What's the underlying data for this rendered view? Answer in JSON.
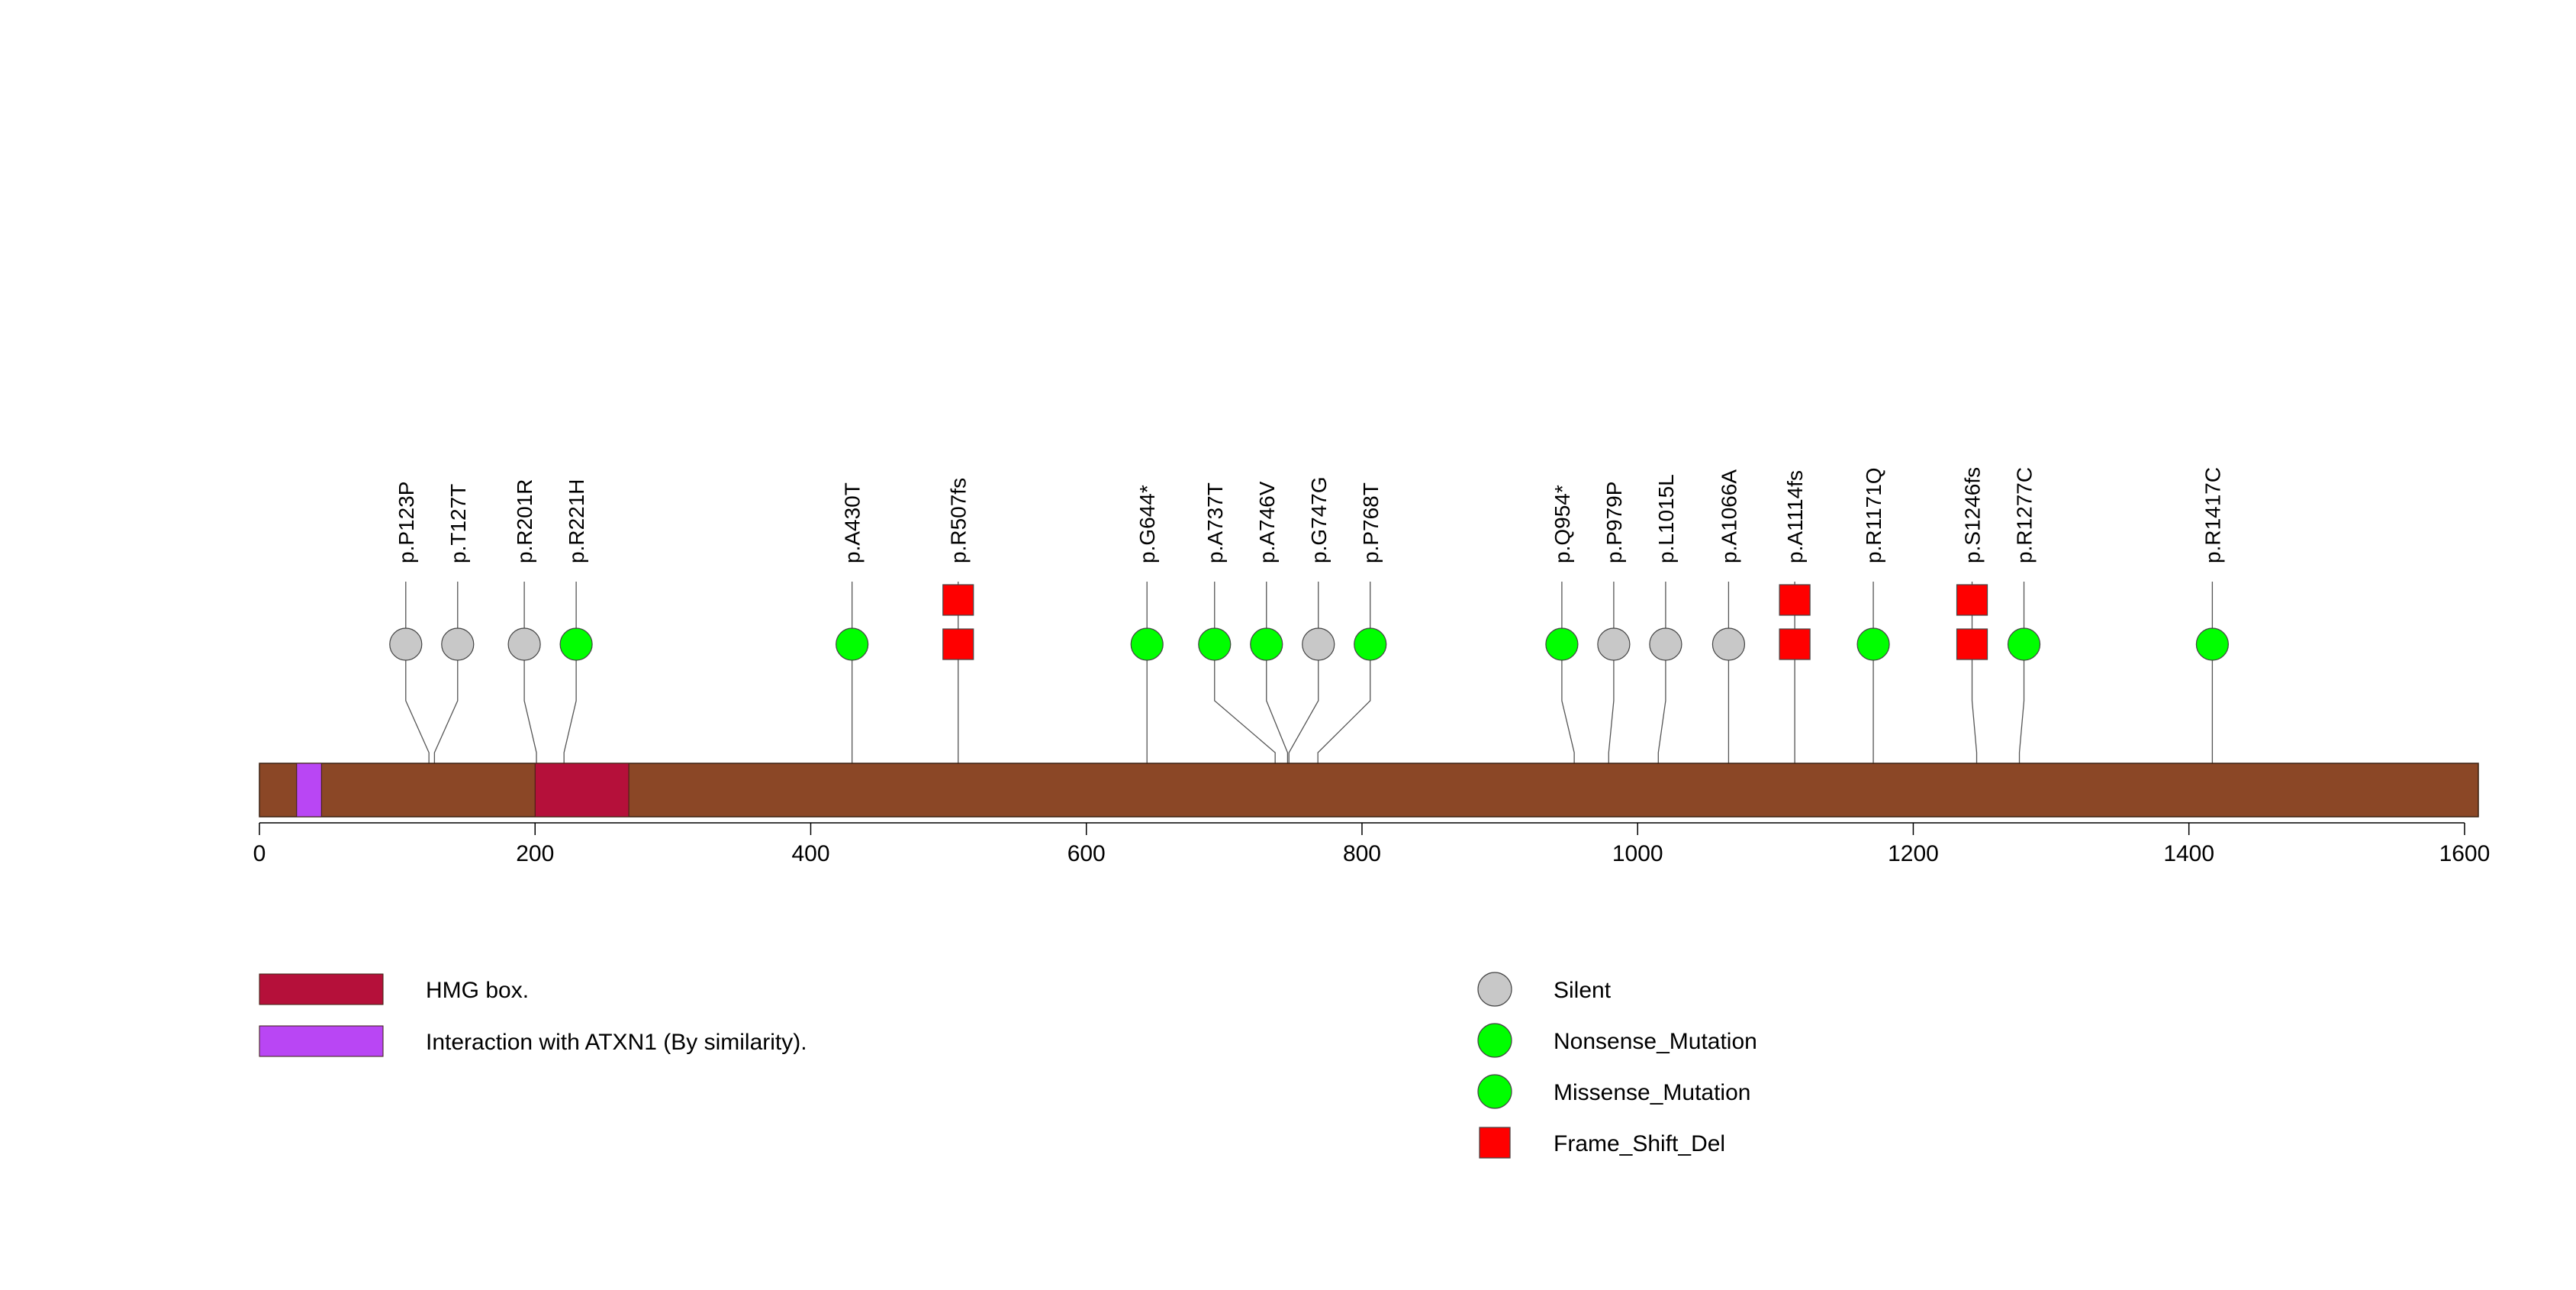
{
  "axis": {
    "min": 0,
    "max": 1610,
    "ticks": [
      0,
      200,
      400,
      600,
      800,
      1000,
      1200,
      1400,
      1600
    ]
  },
  "protein": {
    "length": 1610,
    "color": "#8b4726"
  },
  "domains": [
    {
      "name": "HMG box.",
      "start": 200,
      "end": 268,
      "color": "#b5103a"
    },
    {
      "name": "Interaction with ATXN1 (By similarity).",
      "start": 27,
      "end": 45,
      "color": "#b946f4"
    }
  ],
  "mutation_types": [
    {
      "name": "Silent",
      "shape": "circle",
      "color": "#c8c8c8"
    },
    {
      "name": "Nonsense_Mutation",
      "shape": "circle",
      "color": "#00ff00"
    },
    {
      "name": "Missense_Mutation",
      "shape": "circle",
      "color": "#00ff00"
    },
    {
      "name": "Frame_Shift_Del",
      "shape": "square",
      "color": "#ff0000"
    }
  ],
  "mutations": [
    {
      "label": "p.P123P",
      "position": 123,
      "type": "Silent",
      "count": 1
    },
    {
      "label": "p.T127T",
      "position": 127,
      "type": "Silent",
      "count": 1
    },
    {
      "label": "p.R201R",
      "position": 201,
      "type": "Silent",
      "count": 1
    },
    {
      "label": "p.R221H",
      "position": 221,
      "type": "Missense_Mutation",
      "count": 1
    },
    {
      "label": "p.A430T",
      "position": 430,
      "type": "Missense_Mutation",
      "count": 1
    },
    {
      "label": "p.R507fs",
      "position": 507,
      "type": "Frame_Shift_Del",
      "count": 2
    },
    {
      "label": "p.G644*",
      "position": 644,
      "type": "Nonsense_Mutation",
      "count": 1
    },
    {
      "label": "p.A737T",
      "position": 737,
      "type": "Missense_Mutation",
      "count": 1
    },
    {
      "label": "p.A746V",
      "position": 746,
      "type": "Missense_Mutation",
      "count": 1
    },
    {
      "label": "p.G747G",
      "position": 747,
      "type": "Silent",
      "count": 1
    },
    {
      "label": "p.P768T",
      "position": 768,
      "type": "Missense_Mutation",
      "count": 1
    },
    {
      "label": "p.Q954*",
      "position": 954,
      "type": "Nonsense_Mutation",
      "count": 1
    },
    {
      "label": "p.P979P",
      "position": 979,
      "type": "Silent",
      "count": 1
    },
    {
      "label": "p.L1015L",
      "position": 1015,
      "type": "Silent",
      "count": 1
    },
    {
      "label": "p.A1066A",
      "position": 1066,
      "type": "Silent",
      "count": 1
    },
    {
      "label": "p.A1114fs",
      "position": 1114,
      "type": "Frame_Shift_Del",
      "count": 2
    },
    {
      "label": "p.R1171Q",
      "position": 1171,
      "type": "Missense_Mutation",
      "count": 1
    },
    {
      "label": "p.S1246fs",
      "position": 1246,
      "type": "Frame_Shift_Del",
      "count": 2
    },
    {
      "label": "p.R1277C",
      "position": 1277,
      "type": "Missense_Mutation",
      "count": 1
    },
    {
      "label": "p.R1417C",
      "position": 1417,
      "type": "Missense_Mutation",
      "count": 1
    }
  ]
}
